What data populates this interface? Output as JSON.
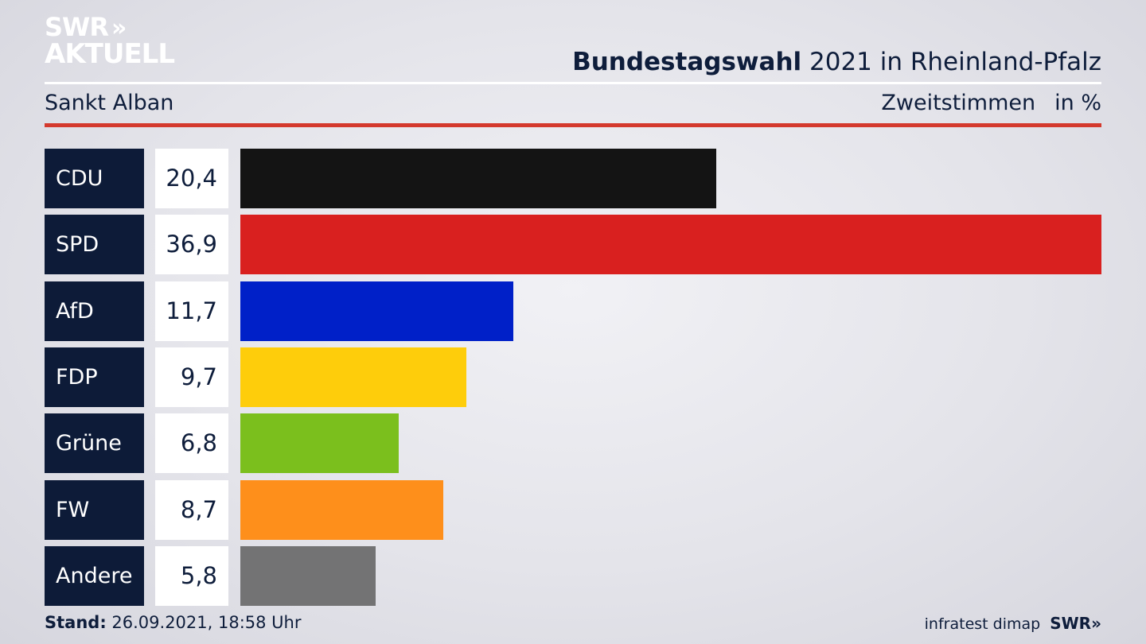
{
  "logo": {
    "line1": "SWR",
    "chevrons": "»",
    "line2": "AKTUELL"
  },
  "header": {
    "title_bold": "Bundestagswahl",
    "title_rest": " 2021 in Rheinland-Pfalz",
    "subtitle": "Sankt Alban",
    "measure": "Zweitstimmen",
    "unit": "in %"
  },
  "chart_data": {
    "type": "bar",
    "orientation": "horizontal",
    "categories": [
      "CDU",
      "SPD",
      "AfD",
      "FDP",
      "Grüne",
      "FW",
      "Andere"
    ],
    "values": [
      20.4,
      36.9,
      11.7,
      9.7,
      6.8,
      8.7,
      5.8
    ],
    "value_labels": [
      "20,4",
      "36,9",
      "11,7",
      "9,7",
      "6,8",
      "8,7",
      "5,8"
    ],
    "colors": [
      "#141414",
      "#d9201f",
      "#0020c8",
      "#fecd0b",
      "#7bbf1d",
      "#fe8f1b",
      "#737374"
    ],
    "xlim": [
      0,
      36.9
    ]
  },
  "footer": {
    "stand_label": "Stand:",
    "stand_value": " 26.09.2021, 18:58 Uhr",
    "source": "infratest dimap",
    "brand": "SWR»"
  }
}
